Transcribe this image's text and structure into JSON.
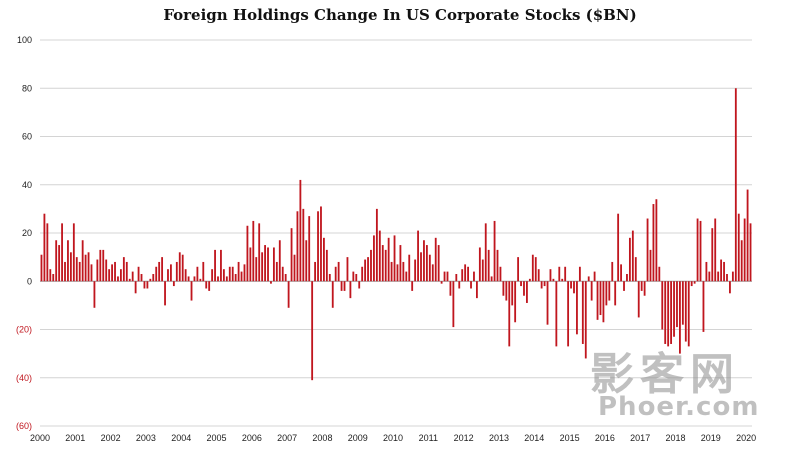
{
  "chart_data": {
    "type": "bar",
    "title": "Foreign Holdings Change In US Corporate Stocks ($BN)",
    "xlabel": "",
    "ylabel": "",
    "ylim": [
      -60,
      100
    ],
    "y_ticks": [
      "100",
      "80",
      "60",
      "40",
      "20",
      "0",
      "(20)",
      "(40)",
      "(60)"
    ],
    "x_ticks": [
      "2000",
      "2001",
      "2002",
      "2003",
      "2004",
      "2005",
      "2006",
      "2007",
      "2008",
      "2009",
      "2010",
      "2011",
      "2012",
      "2013",
      "2014",
      "2015",
      "2016",
      "2017",
      "2018",
      "2019",
      "2020"
    ],
    "bar_color": "#c0161e",
    "negative_label_color": "#c0161e",
    "grid": true,
    "x_start_year": 2000,
    "periods_per_year": 12,
    "values": [
      11,
      28,
      24,
      5,
      3,
      17,
      15,
      24,
      8,
      17,
      12,
      24,
      10,
      8,
      17,
      11,
      12,
      7,
      -11,
      9,
      13,
      13,
      9,
      5,
      7,
      8,
      2,
      5,
      10,
      8,
      1,
      4,
      -5,
      6,
      3,
      -3,
      -3,
      1,
      3,
      6,
      8,
      10,
      -10,
      5,
      7,
      -2,
      8,
      12,
      11,
      5,
      2,
      -8,
      2,
      6,
      1,
      8,
      -3,
      -4,
      5,
      13,
      2,
      13,
      5,
      2,
      6,
      6,
      3,
      8,
      4,
      7,
      23,
      14,
      25,
      10,
      24,
      12,
      15,
      14,
      -1,
      14,
      8,
      17,
      6,
      3,
      -11,
      22,
      11,
      29,
      42,
      30,
      17,
      27,
      -41,
      8,
      29,
      31,
      18,
      13,
      3,
      -11,
      6,
      8,
      -4,
      -4,
      10,
      -7,
      4,
      3,
      -3,
      6,
      9,
      10,
      13,
      19,
      30,
      21,
      15,
      13,
      18,
      8,
      19,
      7,
      15,
      8,
      4,
      11,
      -4,
      9,
      21,
      12,
      17,
      15,
      11,
      7,
      18,
      15,
      -1,
      4,
      4,
      -6,
      -19,
      3,
      -3,
      5,
      7,
      6,
      -3,
      4,
      -7,
      14,
      9,
      24,
      13,
      2,
      25,
      13,
      6,
      -6,
      -8,
      -27,
      -10,
      -17,
      10,
      -2,
      -6,
      -9,
      1,
      11,
      10,
      5,
      -3,
      -2,
      -18,
      5,
      1,
      -27,
      6,
      1,
      6,
      -27,
      -3,
      -5,
      -22,
      6,
      -26,
      -32,
      2,
      -8,
      4,
      -16,
      -14,
      -17,
      -10,
      -8,
      8,
      -10,
      28,
      7,
      -4,
      3,
      18,
      21,
      10,
      -15,
      -4,
      -6,
      26,
      13,
      32,
      34,
      6,
      -20,
      -26,
      -27,
      -26,
      -23,
      -19,
      -30,
      -18,
      -25,
      -27,
      -2,
      -1,
      26,
      25,
      -21,
      8,
      4,
      22,
      26,
      4,
      9,
      8,
      3,
      -5,
      4,
      80,
      28,
      17,
      26,
      38,
      24
    ]
  },
  "watermark": {
    "chinese": "影客网",
    "latin": "Phoer.com"
  }
}
